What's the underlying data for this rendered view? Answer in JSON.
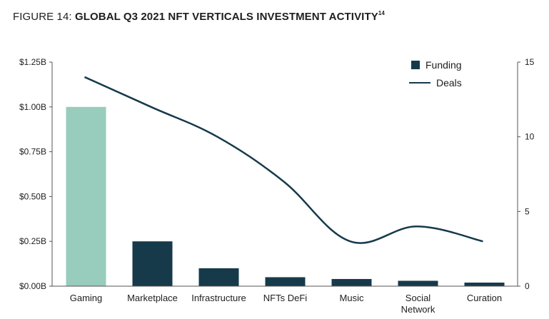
{
  "figure": {
    "prefix": "FIGURE 14:",
    "title": "GLOBAL Q3 2021 NFT VERTICALS INVESTMENT ACTIVITY",
    "footnote": "14"
  },
  "colors": {
    "bar_default": "#163a4a",
    "bar_highlight": "#98ccbd",
    "line": "#163a4a",
    "axis": "#555555"
  },
  "chart_data": {
    "type": "bar",
    "categories": [
      "Gaming",
      "Marketplace",
      "Infrastructure",
      "NFTs DeFi",
      "Music",
      "Social Network",
      "Curation"
    ],
    "category_lines": [
      [
        "Gaming"
      ],
      [
        "Marketplace"
      ],
      [
        "Infrastructure"
      ],
      [
        "NFTs DeFi"
      ],
      [
        "Music"
      ],
      [
        "Social",
        "Network"
      ],
      [
        "Curation"
      ]
    ],
    "series": [
      {
        "name": "Funding",
        "type": "bar",
        "axis": "left",
        "values": [
          1.0,
          0.25,
          0.1,
          0.05,
          0.04,
          0.03,
          0.02
        ],
        "highlight_index": 0
      },
      {
        "name": "Deals",
        "type": "line",
        "axis": "right",
        "values": [
          14,
          12,
          10,
          7,
          3,
          4,
          3
        ]
      }
    ],
    "y_left": {
      "ylim": [
        0,
        1.25
      ],
      "ticks": [
        0,
        0.25,
        0.5,
        0.75,
        1.0,
        1.25
      ],
      "tick_labels": [
        "$0.00B",
        "$0.25B",
        "$0.50B",
        "$0.75B",
        "$1.00B",
        "$1.25B"
      ]
    },
    "y_right": {
      "ylim": [
        0,
        15
      ],
      "ticks": [
        0,
        5,
        10,
        15
      ],
      "tick_labels": [
        "0",
        "5",
        "10",
        "15"
      ]
    },
    "grid": false,
    "legend": {
      "position": "top-right",
      "entries": [
        "Funding",
        "Deals"
      ]
    }
  }
}
